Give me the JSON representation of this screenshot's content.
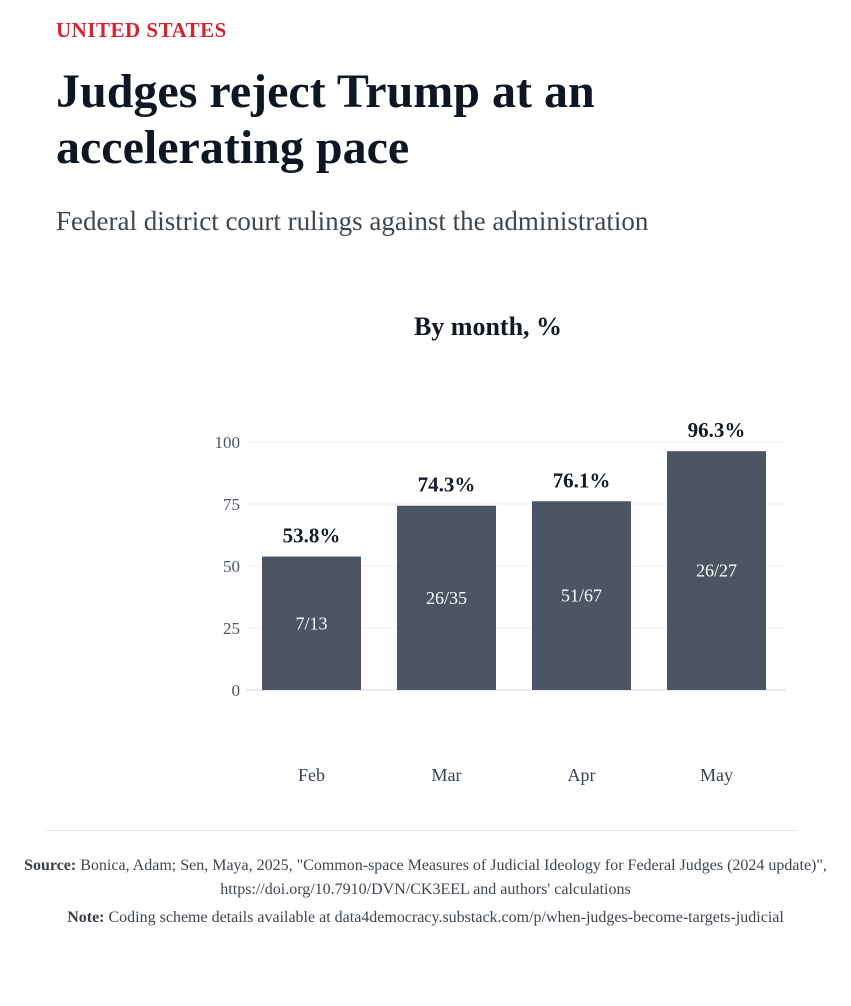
{
  "header": {
    "kicker": "UNITED STATES",
    "headline": "Judges reject Trump at an accelerating pace",
    "subhead": "Federal district court rulings against the administration"
  },
  "chart_data": {
    "type": "bar",
    "title": "By month, %",
    "categories": [
      "Feb",
      "Mar",
      "Apr",
      "May"
    ],
    "values": [
      53.8,
      74.3,
      76.1,
      96.3
    ],
    "value_labels": [
      "53.8%",
      "74.3%",
      "76.1%",
      "96.3%"
    ],
    "inner_labels": [
      "7/13",
      "26/35",
      "51/67",
      "26/27"
    ],
    "yticks": [
      0,
      25,
      50,
      75,
      100
    ],
    "ylim": [
      0,
      100
    ],
    "xlabel": "",
    "ylabel": "",
    "grid": true,
    "bar_color": "#4b5563"
  },
  "footer": {
    "source_label": "Source:",
    "source_text": " Bonica, Adam; Sen, Maya, 2025, \"Common-space Measures of Judicial Ideology for Federal Judges (2024 update)\", https://doi.org/10.7910/DVN/CK3EEL and authors' calculations",
    "note_label": "Note:",
    "note_text": " Coding scheme details available at data4democracy.substack.com/p/when-judges-become-targets-judicial"
  }
}
